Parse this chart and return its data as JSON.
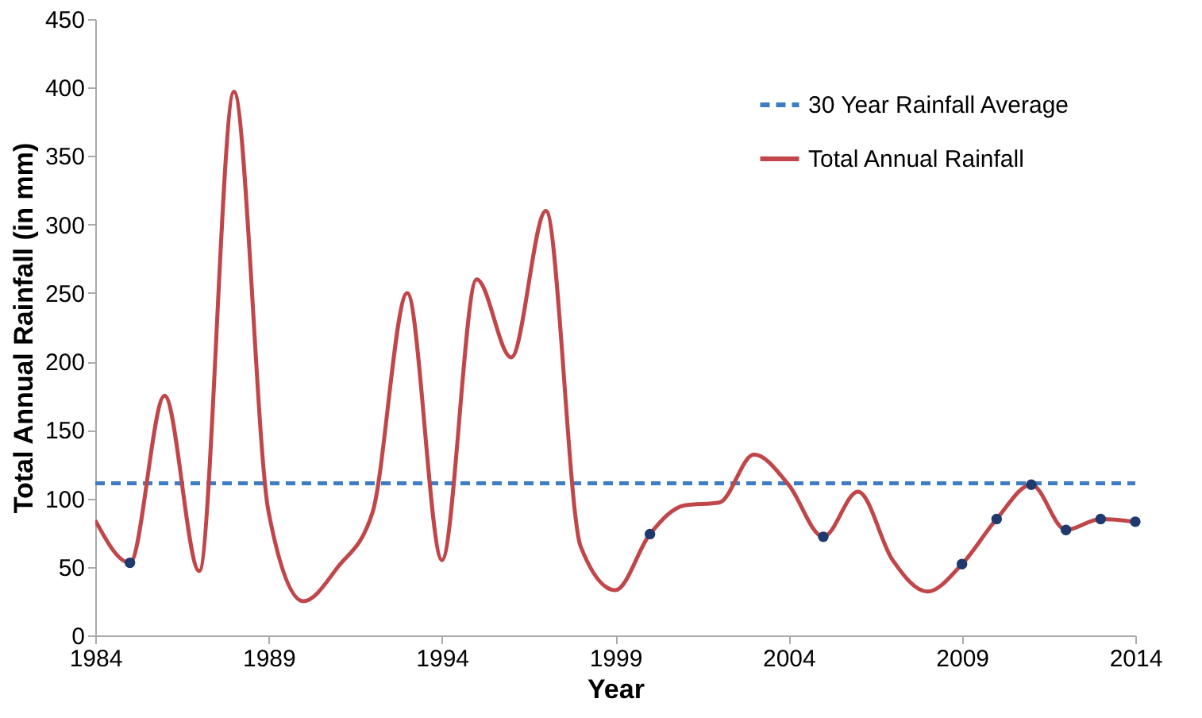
{
  "chart_data": {
    "type": "line",
    "xlabel": "Year",
    "ylabel": "Total Annual Rainfall (in mm)",
    "xlim": [
      1984,
      2014
    ],
    "xticks": [
      1984,
      1989,
      1994,
      1999,
      2004,
      2009,
      2014
    ],
    "ylim": [
      0,
      450
    ],
    "yticks": [
      0,
      50,
      100,
      150,
      200,
      250,
      300,
      350,
      400,
      450
    ],
    "grid": false,
    "legend": "top right",
    "series": [
      {
        "name": "30 Year Rainfall Average",
        "color": "#3e7cc4",
        "line_style": "dashed",
        "x": [
          1984,
          2014
        ],
        "values": [
          111,
          111
        ]
      },
      {
        "name": "Total Annual Rainfall",
        "color": "#c0464a",
        "line_style": "solid",
        "x": [
          1984,
          1985,
          1986,
          1987,
          1988,
          1989,
          1990,
          1991,
          1992,
          1993,
          1994,
          1995,
          1996,
          1997,
          1998,
          1999,
          2000,
          2001,
          2002,
          2003,
          2004,
          2005,
          2006,
          2007,
          2008,
          2009,
          2010,
          2011,
          2012,
          2013,
          2014
        ],
        "values": [
          84,
          53,
          175,
          47,
          397,
          90,
          25,
          50,
          90,
          250,
          55,
          260,
          203,
          310,
          65,
          33,
          74,
          95,
          97,
          132,
          110,
          72,
          105,
          55,
          32,
          52,
          85,
          110,
          77,
          85,
          83
        ]
      },
      {
        "type": "scatter",
        "color": "#1f3a6e",
        "marker": "circle",
        "x": [
          1985,
          2000,
          2005,
          2009,
          2010,
          2011,
          2012,
          2013,
          2014
        ],
        "values": [
          53,
          74,
          72,
          52,
          85,
          110,
          77,
          85,
          83
        ]
      }
    ]
  }
}
